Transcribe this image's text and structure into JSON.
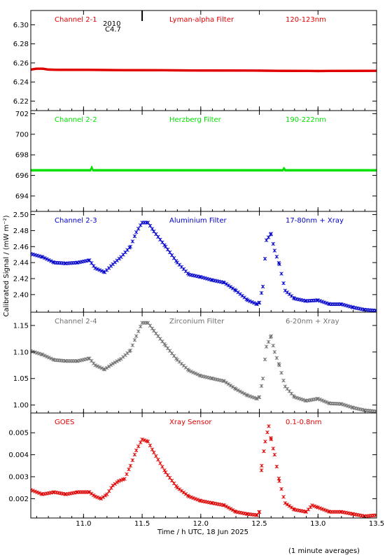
{
  "chart_data": {
    "type": "scatter",
    "xlabel": "Time / h UTC, 18 Jun 2025",
    "ylabel": "Calibrated Signal / (mW m⁻²)",
    "xlim": [
      10.55,
      13.5
    ],
    "xticks": [
      "11.0",
      "11.5",
      "12.0",
      "12.5",
      "13.0",
      "13.5"
    ],
    "footnote": "(1 minute averages)",
    "flare_annotation": {
      "x": 11.5,
      "label_top": "2010",
      "label_bottom": "C4.7"
    },
    "panels": [
      {
        "channel": "Channel 2-1",
        "filter": "Lyman-alpha Filter",
        "band": "120-123nm",
        "color": "#e00000",
        "ylim": [
          6.21,
          6.315
        ],
        "yticks": [
          "6.22",
          "6.24",
          "6.26",
          "6.28",
          "6.30"
        ],
        "x": [
          10.55,
          10.6,
          10.65,
          10.7,
          10.8,
          11.0,
          11.5,
          12.0,
          12.5,
          13.0,
          13.5
        ],
        "y": [
          6.253,
          6.254,
          6.254,
          6.253,
          6.2528,
          6.2527,
          6.2524,
          6.2521,
          6.2519,
          6.2515,
          6.2518
        ]
      },
      {
        "channel": "Channel 2-2",
        "filter": "Herzberg Filter",
        "band": "190-222nm",
        "color": "#00e000",
        "ylim": [
          692.5,
          702.3
        ],
        "yticks": [
          "694",
          "696",
          "698",
          "700",
          "702"
        ],
        "x": [
          10.55,
          11.0,
          11.06,
          11.07,
          11.08,
          11.5,
          12.0,
          12.5,
          12.7,
          12.71,
          12.72,
          13.0,
          13.5
        ],
        "y": [
          696.5,
          696.5,
          696.5,
          696.8,
          696.5,
          696.5,
          696.5,
          696.5,
          696.5,
          696.7,
          696.5,
          696.5,
          696.5
        ]
      },
      {
        "channel": "Channel 2-3",
        "filter": "Aluminium Filter",
        "band": "17-80nm + Xray",
        "color": "#0000cc",
        "ylim": [
          2.378,
          2.504
        ],
        "yticks": [
          "2.40",
          "2.42",
          "2.44",
          "2.46",
          "2.48",
          "2.50"
        ],
        "x": [
          10.55,
          10.65,
          10.75,
          10.85,
          10.95,
          11.05,
          11.1,
          11.18,
          11.25,
          11.32,
          11.4,
          11.45,
          11.5,
          11.55,
          11.6,
          11.7,
          11.8,
          11.9,
          12.0,
          12.1,
          12.2,
          12.3,
          12.4,
          12.48,
          12.5,
          12.53,
          12.56,
          12.6,
          12.63,
          12.67,
          12.72,
          12.8,
          12.9,
          13.0,
          13.1,
          13.2,
          13.3,
          13.4,
          13.5
        ],
        "y": [
          2.451,
          2.447,
          2.44,
          2.439,
          2.44,
          2.443,
          2.433,
          2.428,
          2.438,
          2.447,
          2.46,
          2.478,
          2.49,
          2.49,
          2.479,
          2.46,
          2.44,
          2.425,
          2.422,
          2.418,
          2.415,
          2.405,
          2.393,
          2.388,
          2.39,
          2.41,
          2.468,
          2.476,
          2.455,
          2.438,
          2.405,
          2.395,
          2.392,
          2.393,
          2.388,
          2.388,
          2.384,
          2.381,
          2.38
        ]
      },
      {
        "channel": "Channel 2-4",
        "filter": "Zirconium Filter",
        "band": "6-20nm + Xray",
        "color": "#707070",
        "ylim": [
          0.985,
          1.175
        ],
        "yticks": [
          "1.00",
          "1.05",
          "1.10",
          "1.15"
        ],
        "x": [
          10.55,
          10.65,
          10.75,
          10.85,
          10.95,
          11.05,
          11.1,
          11.18,
          11.25,
          11.32,
          11.4,
          11.45,
          11.5,
          11.55,
          11.6,
          11.7,
          11.8,
          11.9,
          12.0,
          12.1,
          12.2,
          12.3,
          12.4,
          12.48,
          12.5,
          12.53,
          12.56,
          12.6,
          12.63,
          12.67,
          12.72,
          12.8,
          12.9,
          13.0,
          13.1,
          13.2,
          13.3,
          13.4,
          13.5
        ],
        "y": [
          1.102,
          1.095,
          1.085,
          1.083,
          1.083,
          1.088,
          1.075,
          1.067,
          1.078,
          1.087,
          1.103,
          1.13,
          1.155,
          1.155,
          1.14,
          1.112,
          1.085,
          1.065,
          1.055,
          1.05,
          1.045,
          1.03,
          1.018,
          1.012,
          1.015,
          1.05,
          1.11,
          1.13,
          1.1,
          1.075,
          1.035,
          1.015,
          1.008,
          1.012,
          1.003,
          1.002,
          0.995,
          0.99,
          0.988
        ]
      },
      {
        "channel": "GOES",
        "filter": "Xray Sensor",
        "band": "0.1-0.8nm",
        "color": "#e00000",
        "ylim": [
          0.00112,
          0.0059
        ],
        "yticks": [
          "0.002",
          "0.003",
          "0.004",
          "0.005"
        ],
        "x": [
          10.55,
          10.65,
          10.75,
          10.85,
          10.95,
          11.05,
          11.1,
          11.15,
          11.2,
          11.25,
          11.3,
          11.35,
          11.4,
          11.45,
          11.5,
          11.55,
          11.6,
          11.7,
          11.8,
          11.9,
          12.0,
          12.1,
          12.2,
          12.3,
          12.4,
          12.48,
          12.5,
          12.52,
          12.55,
          12.58,
          12.6,
          12.63,
          12.67,
          12.72,
          12.8,
          12.9,
          12.95,
          13.0,
          13.1,
          13.2,
          13.3,
          13.4,
          13.5
        ],
        "y": [
          0.0024,
          0.0022,
          0.0023,
          0.0022,
          0.0023,
          0.0023,
          0.0021,
          0.002,
          0.0022,
          0.0026,
          0.0028,
          0.0029,
          0.0035,
          0.0042,
          0.0047,
          0.0046,
          0.0041,
          0.0032,
          0.0025,
          0.0021,
          0.0019,
          0.0018,
          0.0017,
          0.0014,
          0.0013,
          0.00125,
          0.0014,
          0.0035,
          0.0046,
          0.0053,
          0.0047,
          0.004,
          0.0028,
          0.0018,
          0.0015,
          0.0014,
          0.0017,
          0.0016,
          0.0014,
          0.0014,
          0.0013,
          0.0012,
          0.00125
        ]
      }
    ]
  }
}
